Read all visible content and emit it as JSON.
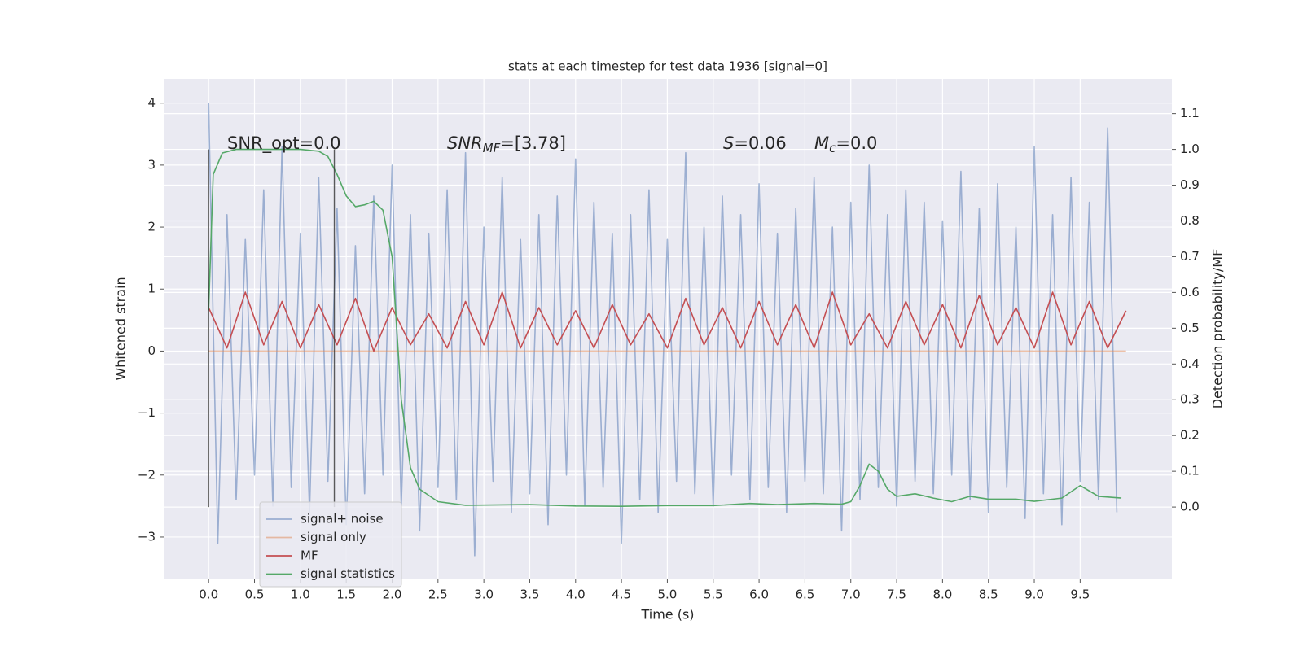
{
  "chart_data": {
    "type": "line",
    "title": "stats at each timestep for test data 1936 [signal=0]",
    "xlabel": "Time (s)",
    "ylabel": "Whitened strain",
    "y2label": "Detection probability/MF",
    "xlim": [
      -0.49,
      10.5
    ],
    "ylim": [
      -3.67,
      4.39
    ],
    "y2lim": [
      -0.2,
      1.197
    ],
    "xticks": [
      {
        "value": 0.0,
        "label": "0.0"
      },
      {
        "value": 0.5,
        "label": "0.5"
      },
      {
        "value": 1.0,
        "label": "1.0"
      },
      {
        "value": 1.5,
        "label": "1.5"
      },
      {
        "value": 2.0,
        "label": "2.0"
      },
      {
        "value": 2.5,
        "label": "2.5"
      },
      {
        "value": 3.0,
        "label": "3.0"
      },
      {
        "value": 3.5,
        "label": "3.5"
      },
      {
        "value": 4.0,
        "label": "4.0"
      },
      {
        "value": 4.5,
        "label": "4.5"
      },
      {
        "value": 5.0,
        "label": "5.0"
      },
      {
        "value": 5.5,
        "label": "5.5"
      },
      {
        "value": 6.0,
        "label": "6.0"
      },
      {
        "value": 6.5,
        "label": "6.5"
      },
      {
        "value": 7.0,
        "label": "7.0"
      },
      {
        "value": 7.5,
        "label": "7.5"
      },
      {
        "value": 8.0,
        "label": "8.0"
      },
      {
        "value": 8.5,
        "label": "8.5"
      },
      {
        "value": 9.0,
        "label": "9.0"
      },
      {
        "value": 9.5,
        "label": "9.5"
      }
    ],
    "yticks": [
      {
        "value": -3,
        "label": "−3"
      },
      {
        "value": -2,
        "label": "−2"
      },
      {
        "value": -1,
        "label": "−1"
      },
      0,
      1,
      2,
      3,
      4
    ],
    "y2ticks": [
      {
        "value": 0.0,
        "label": "0.0"
      },
      {
        "value": 0.1,
        "label": "0.1"
      },
      {
        "value": 0.2,
        "label": "0.2"
      },
      {
        "value": 0.3,
        "label": "0.3"
      },
      {
        "value": 0.4,
        "label": "0.4"
      },
      {
        "value": 0.5,
        "label": "0.5"
      },
      {
        "value": 0.6,
        "label": "0.6"
      },
      {
        "value": 0.7,
        "label": "0.7"
      },
      {
        "value": 0.8,
        "label": "0.8"
      },
      {
        "value": 0.9,
        "label": "0.9"
      },
      {
        "value": 1.0,
        "label": "1.0"
      },
      {
        "value": 1.1,
        "label": "1.1"
      }
    ],
    "grid": true,
    "legend": true,
    "vlines": [
      0.0,
      1.37
    ],
    "vline_span": [
      0,
      1
    ],
    "annotations": [
      {
        "text": "SNR_opt=0.0"
      },
      {
        "main": "SNR",
        "sub": "MF",
        "rest": "=[3.78]"
      },
      {
        "main": "S",
        "rest": "=0.06"
      },
      {
        "main": "M",
        "sub": "c",
        "rest": "=0.0"
      }
    ],
    "series": [
      {
        "name": "signal+ noise",
        "color": "#4c72b0",
        "opacity": 0.5,
        "axis": "y",
        "x": [
          0.0,
          0.1,
          0.2,
          0.3,
          0.4,
          0.5,
          0.6,
          0.7,
          0.8,
          0.9,
          1.0,
          1.1,
          1.2,
          1.3,
          1.4,
          1.5,
          1.6,
          1.7,
          1.8,
          1.9,
          2.0,
          2.1,
          2.2,
          2.3,
          2.4,
          2.5,
          2.6,
          2.7,
          2.8,
          2.9,
          3.0,
          3.1,
          3.2,
          3.3,
          3.4,
          3.5,
          3.6,
          3.7,
          3.8,
          3.9,
          4.0,
          4.1,
          4.2,
          4.3,
          4.4,
          4.5,
          4.6,
          4.7,
          4.8,
          4.9,
          5.0,
          5.1,
          5.2,
          5.3,
          5.4,
          5.5,
          5.6,
          5.7,
          5.8,
          5.9,
          6.0,
          6.1,
          6.2,
          6.3,
          6.4,
          6.5,
          6.6,
          6.7,
          6.8,
          6.9,
          7.0,
          7.1,
          7.2,
          7.3,
          7.4,
          7.5,
          7.6,
          7.7,
          7.8,
          7.9,
          8.0,
          8.1,
          8.2,
          8.3,
          8.4,
          8.5,
          8.6,
          8.7,
          8.8,
          8.9,
          9.0,
          9.1,
          9.2,
          9.3,
          9.4,
          9.5,
          9.6,
          9.7,
          9.8,
          9.9
        ],
        "values": [
          4.0,
          -3.1,
          2.2,
          -2.4,
          1.8,
          -2.0,
          2.6,
          -2.5,
          3.3,
          -2.2,
          1.9,
          -2.6,
          2.8,
          -2.1,
          2.3,
          -2.8,
          1.7,
          -2.3,
          2.5,
          -2.0,
          3.0,
          -2.5,
          2.2,
          -2.9,
          1.9,
          -2.2,
          2.6,
          -2.4,
          3.2,
          -3.3,
          2.0,
          -2.1,
          2.8,
          -2.6,
          1.8,
          -2.3,
          2.2,
          -2.8,
          2.5,
          -2.0,
          3.1,
          -2.5,
          2.4,
          -2.2,
          1.9,
          -3.1,
          2.2,
          -2.4,
          2.6,
          -2.6,
          1.8,
          -2.1,
          3.2,
          -2.3,
          2.0,
          -2.5,
          2.5,
          -2.0,
          2.2,
          -2.4,
          2.7,
          -2.2,
          1.9,
          -2.6,
          2.3,
          -2.1,
          2.8,
          -2.3,
          2.0,
          -2.9,
          2.4,
          -2.4,
          3.0,
          -2.2,
          2.2,
          -2.5,
          2.6,
          -2.1,
          2.4,
          -2.3,
          2.1,
          -2.0,
          2.9,
          -2.4,
          2.3,
          -2.6,
          2.7,
          -2.2,
          2.0,
          -2.7,
          3.3,
          -2.3,
          2.2,
          -2.8,
          2.8,
          -2.1,
          2.4,
          -2.4,
          3.6,
          -2.6
        ]
      },
      {
        "name": "signal only",
        "color": "#dd8452",
        "opacity": 0.5,
        "axis": "y",
        "x": [
          0.0,
          10.0
        ],
        "values": [
          0,
          0
        ]
      },
      {
        "name": "MF",
        "color": "#c44e52",
        "opacity": 1,
        "axis": "y",
        "x": [
          0.0,
          0.2,
          0.4,
          0.6,
          0.8,
          1.0,
          1.2,
          1.4,
          1.6,
          1.8,
          2.0,
          2.2,
          2.4,
          2.6,
          2.8,
          3.0,
          3.2,
          3.4,
          3.6,
          3.8,
          4.0,
          4.2,
          4.4,
          4.6,
          4.8,
          5.0,
          5.2,
          5.4,
          5.6,
          5.8,
          6.0,
          6.2,
          6.4,
          6.6,
          6.8,
          7.0,
          7.2,
          7.4,
          7.6,
          7.8,
          8.0,
          8.2,
          8.4,
          8.6,
          8.8,
          9.0,
          9.2,
          9.4,
          9.6,
          9.8,
          10.0
        ],
        "values": [
          0.7,
          0.05,
          0.95,
          0.1,
          0.8,
          0.05,
          0.75,
          0.1,
          0.85,
          0.0,
          0.7,
          0.1,
          0.6,
          0.05,
          0.8,
          0.1,
          0.95,
          0.05,
          0.7,
          0.1,
          0.65,
          0.05,
          0.75,
          0.1,
          0.6,
          0.05,
          0.85,
          0.1,
          0.7,
          0.05,
          0.8,
          0.1,
          0.75,
          0.05,
          0.95,
          0.1,
          0.6,
          0.05,
          0.8,
          0.1,
          0.75,
          0.05,
          0.9,
          0.1,
          0.7,
          0.05,
          0.95,
          0.1,
          0.8,
          0.05,
          0.65
        ]
      },
      {
        "name": "signal statistics",
        "color": "#55a868",
        "opacity": 1,
        "axis": "y2",
        "x": [
          0.0,
          0.05,
          0.15,
          0.3,
          0.6,
          1.0,
          1.2,
          1.3,
          1.4,
          1.5,
          1.6,
          1.7,
          1.8,
          1.9,
          2.0,
          2.05,
          2.1,
          2.2,
          2.3,
          2.5,
          2.8,
          3.5,
          4.0,
          4.5,
          5.0,
          5.5,
          5.9,
          6.2,
          6.6,
          6.9,
          7.0,
          7.1,
          7.2,
          7.3,
          7.4,
          7.5,
          7.7,
          7.9,
          8.1,
          8.3,
          8.5,
          8.8,
          9.0,
          9.3,
          9.5,
          9.7,
          9.95
        ],
        "values": [
          0.55,
          0.93,
          0.99,
          1.0,
          1.0,
          1.0,
          0.995,
          0.98,
          0.93,
          0.87,
          0.84,
          0.845,
          0.855,
          0.83,
          0.7,
          0.5,
          0.3,
          0.11,
          0.05,
          0.015,
          0.005,
          0.007,
          0.003,
          0.002,
          0.004,
          0.004,
          0.01,
          0.007,
          0.01,
          0.008,
          0.015,
          0.06,
          0.12,
          0.1,
          0.05,
          0.03,
          0.037,
          0.025,
          0.015,
          0.03,
          0.022,
          0.022,
          0.016,
          0.025,
          0.06,
          0.03,
          0.025
        ]
      }
    ]
  }
}
